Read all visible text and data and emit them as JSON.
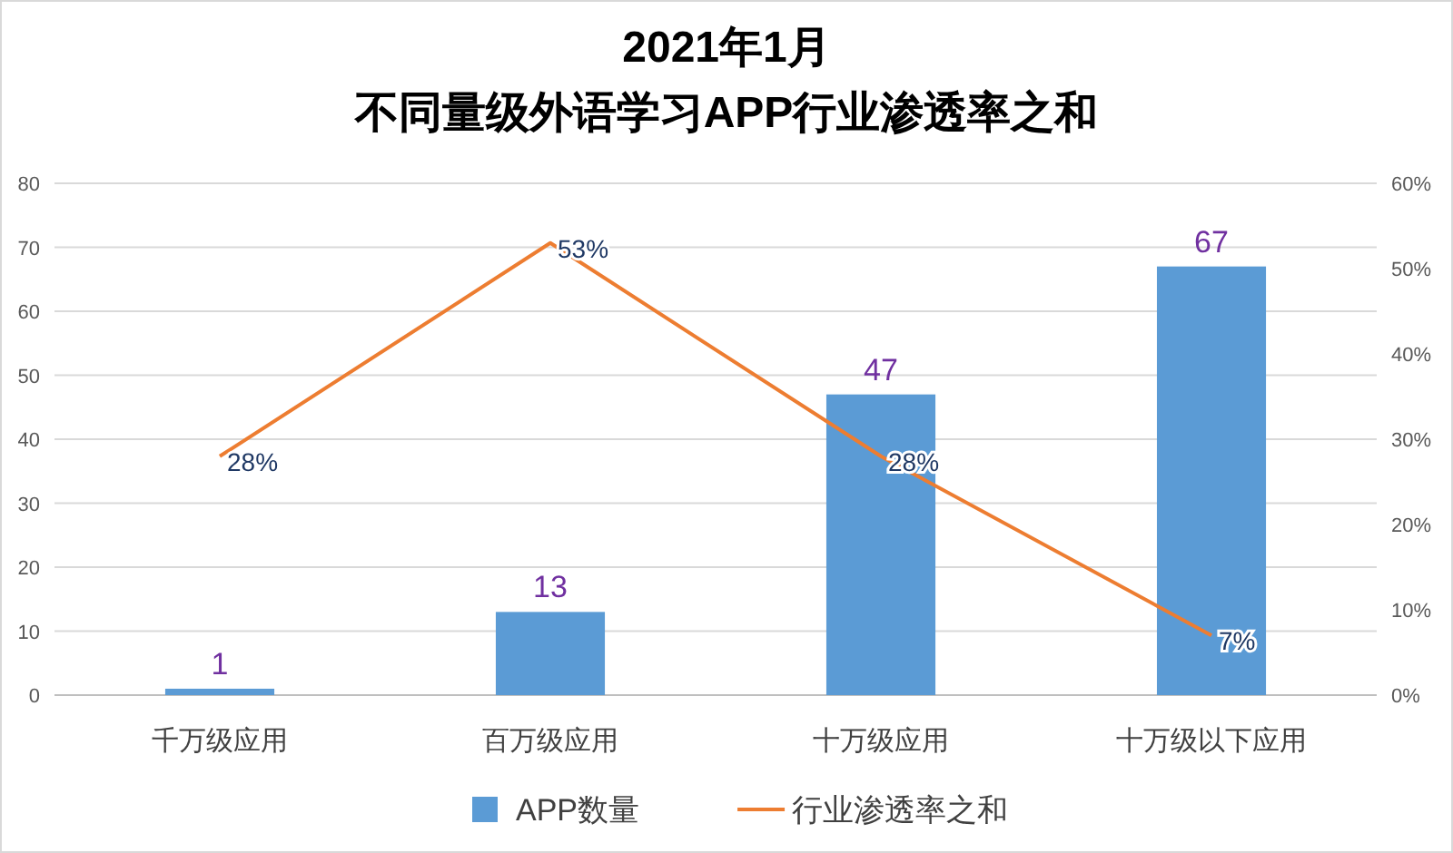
{
  "chart_data": {
    "type": "bar",
    "title": "2021年1月",
    "subtitle": "不同量级外语学习APP行业渗透率之和",
    "categories": [
      "千万级应用",
      "百万级应用",
      "十万级应用",
      "十万级以下应用"
    ],
    "series": [
      {
        "name": "APP数量",
        "color": "#5b9bd5",
        "values": [
          1,
          13,
          47,
          67
        ],
        "value_labels": [
          "1",
          "13",
          "47",
          "67"
        ]
      },
      {
        "name": "行业渗透率之和",
        "type": "line",
        "axis": "y2",
        "color": "#ed7d31",
        "values": [
          28,
          53,
          28,
          7
        ],
        "value_labels": [
          "28%",
          "53%",
          "28%",
          "7%"
        ]
      }
    ],
    "ylim": [
      0,
      80
    ],
    "yticks": [
      0,
      10,
      20,
      30,
      40,
      50,
      60,
      70,
      80
    ],
    "y2lim": [
      0,
      60
    ],
    "y2ticks": [
      {
        "value": 0,
        "label": "0%"
      },
      {
        "value": 10,
        "label": "10%"
      },
      {
        "value": 20,
        "label": "20%"
      },
      {
        "value": 30,
        "label": "30%"
      },
      {
        "value": 40,
        "label": "40%"
      },
      {
        "value": 50,
        "label": "50%"
      },
      {
        "value": 60,
        "label": "60%"
      }
    ],
    "grid": "y",
    "legend": "bottom",
    "marker": "none",
    "line_style": "solid"
  }
}
